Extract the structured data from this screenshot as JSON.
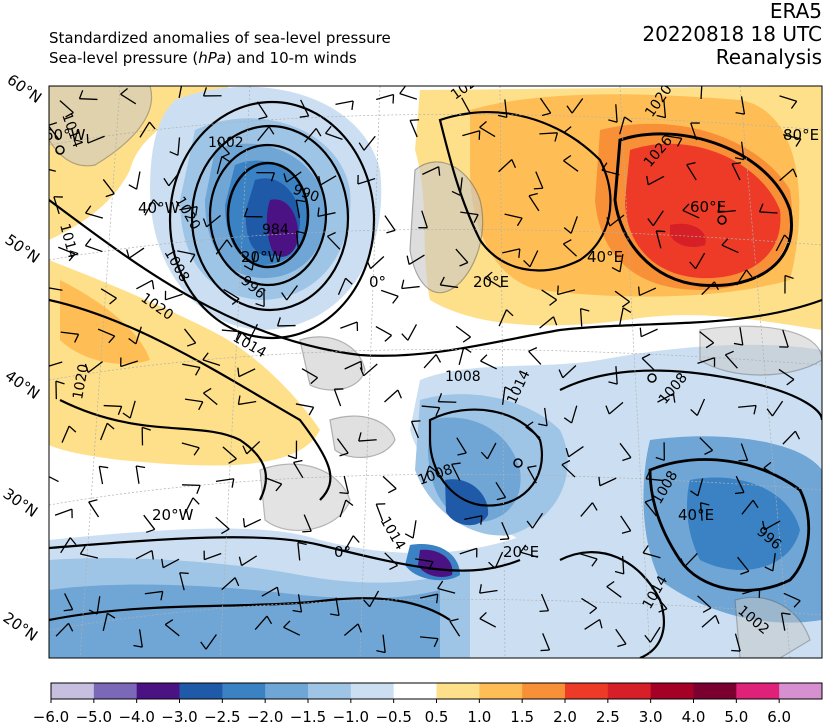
{
  "titles": {
    "left_line1": "Standardized anomalies of sea-level pressure",
    "left_line2_a": "Sea-level pressure (",
    "left_line2_unit": "hPa",
    "left_line2_b": ") and 10-m winds",
    "right_line1": "ERA5",
    "right_line2": "20220818 18 UTC",
    "right_line3": "Reanalysis"
  },
  "lat_labels": [
    "60°N",
    "50°N",
    "40°N",
    "30°N",
    "20°N"
  ],
  "lon_labels": [
    "60°W",
    "40°W",
    "20°W",
    "0°",
    "20°E",
    "40°E",
    "60°E",
    "80°E",
    "20°W",
    "40°E",
    "20°E",
    "0°"
  ],
  "isobar_labels": [
    "1014",
    "1002",
    "990",
    "984",
    "996",
    "1008",
    "1020",
    "1014",
    "1020",
    "1026",
    "1026",
    "1020",
    "1008",
    "1014",
    "1008",
    "1008",
    "1014",
    "1008",
    "996",
    "1002",
    "1014",
    "1014",
    "1020"
  ],
  "colorbar": {
    "ticks": [
      "−6.0",
      "−5.0",
      "−4.0",
      "−3.0",
      "−2.5",
      "−2.0",
      "−1.5",
      "−1.0",
      "−0.5",
      "0.5",
      "1.0",
      "1.5",
      "2.0",
      "2.5",
      "3.0",
      "4.0",
      "5.0",
      "6.0"
    ],
    "colors": [
      "#c6bfe0",
      "#7b68b8",
      "#4b1284",
      "#1f5aa8",
      "#3a82c4",
      "#6fa6d6",
      "#9fc5e6",
      "#ccdff2",
      "#ffffff",
      "#ffe08a",
      "#ffbe55",
      "#f89038",
      "#ee3b28",
      "#d61f26",
      "#a50026",
      "#7a0030",
      "#e0217a",
      "#d690d0"
    ]
  },
  "colors": {
    "land": "#c8c8c8",
    "sea": "#ffffff",
    "coast": "#6e6e6e",
    "isobar": "#000000"
  }
}
